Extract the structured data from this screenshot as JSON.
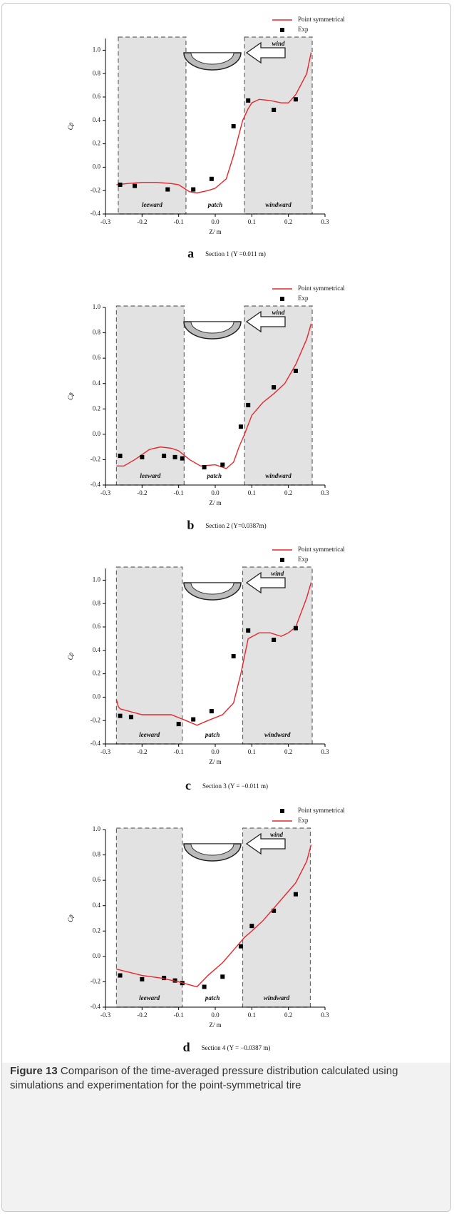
{
  "chart_data": [
    {
      "type": "line",
      "xlim": [
        -0.3,
        0.3
      ],
      "ylim": [
        -0.4,
        1.1
      ],
      "xticks": [
        -0.3,
        -0.2,
        -0.1,
        {
          "value": 0,
          "label": "0.0"
        },
        0.1,
        0.2,
        0.3
      ],
      "yticks": [
        -0.4,
        -0.2,
        {
          "value": 0,
          "label": "0.0"
        },
        0.2,
        0.4,
        0.6,
        0.8,
        {
          "value": 1,
          "label": "1.0"
        }
      ],
      "x_label": "Z/ m",
      "y_label": "Cp",
      "regions": [
        {
          "label": "leeward",
          "x0": -0.265,
          "x1": -0.08,
          "shaded": true
        },
        {
          "label": "patch",
          "x0": -0.08,
          "x1": 0.08,
          "shaded": false
        },
        {
          "label": "windward",
          "x0": 0.08,
          "x1": 0.265,
          "shaded": true
        }
      ],
      "annotation": "wind",
      "caption": {
        "letter": "a",
        "text": "Section 1 (Y =0.011 m)"
      },
      "series": [
        {
          "name": "Point symmetrical",
          "style": "line",
          "color": "#e8262c",
          "x": [
            -0.27,
            -0.24,
            -0.2,
            -0.16,
            -0.12,
            -0.1,
            -0.07,
            -0.05,
            -0.02,
            0,
            0.03,
            0.05,
            0.065,
            0.075,
            0.09,
            0.1,
            0.12,
            0.15,
            0.18,
            0.2,
            0.22,
            0.25,
            0.262
          ],
          "values": [
            -0.15,
            -0.14,
            -0.13,
            -0.13,
            -0.14,
            -0.15,
            -0.21,
            -0.22,
            -0.2,
            -0.18,
            -0.1,
            0.1,
            0.28,
            0.4,
            0.5,
            0.55,
            0.58,
            0.57,
            0.55,
            0.55,
            0.62,
            0.8,
            0.98
          ]
        },
        {
          "name": "Exp",
          "style": "markers",
          "color": "#000000",
          "x": [
            -0.26,
            -0.22,
            -0.13,
            -0.06,
            -0.01,
            0.05,
            0.09,
            0.16,
            0.22
          ],
          "values": [
            -0.15,
            -0.16,
            -0.19,
            -0.19,
            -0.1,
            0.35,
            0.57,
            0.49,
            0.58
          ]
        }
      ]
    },
    {
      "type": "line",
      "xlim": [
        -0.3,
        0.3
      ],
      "ylim": [
        -0.4,
        1.0
      ],
      "xticks": [
        -0.3,
        -0.2,
        -0.1,
        {
          "value": 0,
          "label": "0.0"
        },
        0.1,
        0.2,
        0.3
      ],
      "yticks": [
        -0.4,
        -0.2,
        {
          "value": 0,
          "label": "0.0"
        },
        0.2,
        0.4,
        0.6,
        0.8,
        {
          "value": 1,
          "label": "1.0"
        }
      ],
      "x_label": "Z/ m",
      "y_label": "Cp",
      "regions": [
        {
          "label": "leeward",
          "x0": -0.27,
          "x1": -0.085,
          "shaded": true
        },
        {
          "label": "patch",
          "x0": -0.085,
          "x1": 0.08,
          "shaded": false
        },
        {
          "label": "windward",
          "x0": 0.08,
          "x1": 0.265,
          "shaded": true
        }
      ],
      "annotation": "wind",
      "caption": {
        "letter": "b",
        "text": "Section 2 (Y=0.0387m)"
      },
      "series": [
        {
          "name": "Point symmetrical",
          "style": "line",
          "color": "#e8262c",
          "x": [
            -0.27,
            -0.25,
            -0.22,
            -0.18,
            -0.15,
            -0.12,
            -0.1,
            -0.07,
            -0.04,
            0,
            0.03,
            0.05,
            0.065,
            0.08,
            0.1,
            0.13,
            0.16,
            0.19,
            0.22,
            0.25,
            0.262
          ],
          "values": [
            -0.25,
            -0.25,
            -0.2,
            -0.12,
            -0.1,
            -0.11,
            -0.13,
            -0.2,
            -0.25,
            -0.24,
            -0.27,
            -0.22,
            -0.1,
            0,
            0.15,
            0.25,
            0.32,
            0.4,
            0.55,
            0.75,
            0.87
          ]
        },
        {
          "name": "Exp",
          "style": "markers",
          "color": "#000000",
          "x": [
            -0.26,
            -0.2,
            -0.14,
            -0.11,
            -0.09,
            -0.03,
            0.02,
            0.07,
            0.09,
            0.16,
            0.22
          ],
          "values": [
            -0.17,
            -0.18,
            -0.17,
            -0.18,
            -0.19,
            -0.26,
            -0.24,
            0.06,
            0.23,
            0.37,
            0.5
          ]
        }
      ]
    },
    {
      "type": "line",
      "xlim": [
        -0.3,
        0.3
      ],
      "ylim": [
        -0.4,
        1.1
      ],
      "xticks": [
        -0.3,
        -0.2,
        -0.1,
        {
          "value": 0,
          "label": "0.0"
        },
        0.1,
        0.2,
        0.3
      ],
      "yticks": [
        -0.4,
        -0.2,
        {
          "value": 0,
          "label": "0.0"
        },
        0.2,
        0.4,
        0.6,
        0.8,
        {
          "value": 1,
          "label": "1.0"
        }
      ],
      "x_label": "Z/ m",
      "y_label": "Cp",
      "regions": [
        {
          "label": "leeward",
          "x0": -0.27,
          "x1": -0.09,
          "shaded": true
        },
        {
          "label": "patch",
          "x0": -0.09,
          "x1": 0.075,
          "shaded": false
        },
        {
          "label": "windward",
          "x0": 0.075,
          "x1": 0.265,
          "shaded": true
        }
      ],
      "annotation": "wind",
      "caption": {
        "letter": "c",
        "text": "Section 3 (Y = −0.011 m)"
      },
      "series": [
        {
          "name": "Point symmetrical",
          "style": "line",
          "color": "#e8262c",
          "x": [
            -0.27,
            -0.265,
            -0.26,
            -0.2,
            -0.12,
            -0.08,
            -0.05,
            -0.02,
            0.02,
            0.05,
            0.07,
            0.09,
            0.12,
            0.15,
            0.18,
            0.2,
            0.22,
            0.25,
            0.262
          ],
          "values": [
            -0.02,
            -0.08,
            -0.1,
            -0.15,
            -0.15,
            -0.2,
            -0.24,
            -0.2,
            -0.15,
            -0.05,
            0.2,
            0.5,
            0.55,
            0.55,
            0.52,
            0.55,
            0.6,
            0.85,
            0.98
          ]
        },
        {
          "name": "Exp",
          "style": "markers",
          "color": "#000000",
          "x": [
            -0.26,
            -0.23,
            -0.1,
            -0.06,
            -0.01,
            0.05,
            0.09,
            0.16,
            0.22
          ],
          "values": [
            -0.16,
            -0.17,
            -0.23,
            -0.19,
            -0.12,
            0.35,
            0.57,
            0.49,
            0.59
          ]
        }
      ]
    },
    {
      "type": "line",
      "xlim": [
        -0.3,
        0.3
      ],
      "ylim": [
        -0.4,
        1.0
      ],
      "xticks": [
        -0.3,
        -0.2,
        -0.1,
        {
          "value": 0,
          "label": "0.0"
        },
        0.1,
        0.2,
        0.3
      ],
      "yticks": [
        -0.4,
        -0.2,
        {
          "value": 0,
          "label": "0.0"
        },
        0.2,
        0.4,
        0.6,
        0.8,
        {
          "value": 1,
          "label": "1.0"
        }
      ],
      "x_label": "Z/ m",
      "y_label": "Cp",
      "regions": [
        {
          "label": "leeward",
          "x0": -0.27,
          "x1": -0.09,
          "shaded": true
        },
        {
          "label": "patch",
          "x0": -0.09,
          "x1": 0.075,
          "shaded": false
        },
        {
          "label": "windward",
          "x0": 0.075,
          "x1": 0.26,
          "shaded": true
        }
      ],
      "annotation": "wind",
      "caption": {
        "letter": "d",
        "text": "Section 4 (Y = −0.0387 m)"
      },
      "series": [
        {
          "name": "Point symmetrical",
          "style": "markers",
          "color": "#000000",
          "x": [
            -0.26,
            -0.2,
            -0.14,
            -0.11,
            -0.09,
            -0.03,
            0.02,
            0.07,
            0.1,
            0.16,
            0.22
          ],
          "values": [
            -0.15,
            -0.18,
            -0.17,
            -0.19,
            -0.21,
            -0.24,
            -0.16,
            0.08,
            0.24,
            0.36,
            0.49
          ]
        },
        {
          "name": "Exp",
          "style": "line",
          "color": "#e8262c",
          "x": [
            -0.27,
            -0.2,
            -0.15,
            -0.1,
            -0.05,
            -0.02,
            0.02,
            0.05,
            0.08,
            0.1,
            0.13,
            0.16,
            0.19,
            0.22,
            0.25,
            0.262
          ],
          "values": [
            -0.1,
            -0.15,
            -0.17,
            -0.2,
            -0.24,
            -0.15,
            -0.05,
            0.05,
            0.15,
            0.2,
            0.28,
            0.38,
            0.48,
            0.58,
            0.75,
            0.88
          ]
        }
      ]
    }
  ],
  "figure_caption": {
    "label": "Figure 13",
    "text": "Comparison of the time-averaged pressure distribution calculated using simulations and experimentation for the point-symmetrical tire"
  }
}
